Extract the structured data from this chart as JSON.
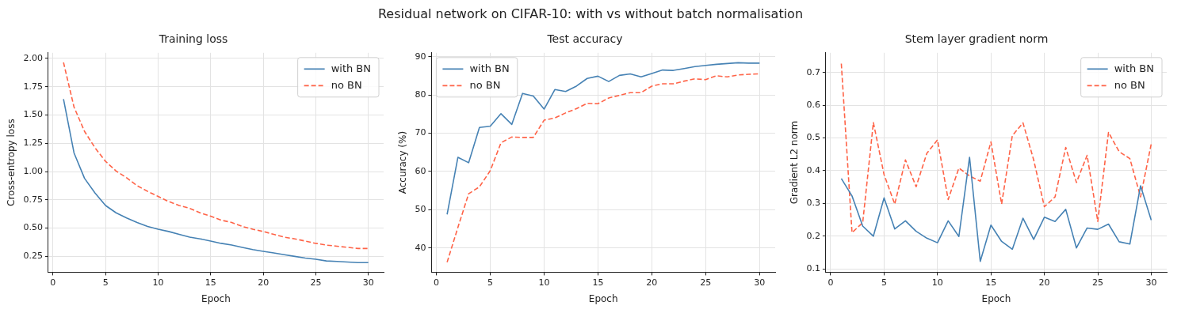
{
  "chart_data": [
    {
      "type": "line",
      "title": "Training loss",
      "xlabel": "Epoch",
      "ylabel": "Cross-entropy loss",
      "annotations": [
        "Residual network on CIFAR-10: with vs without batch normalisation"
      ],
      "x": [
        1,
        2,
        3,
        4,
        5,
        6,
        7,
        8,
        9,
        10,
        11,
        12,
        13,
        14,
        15,
        16,
        17,
        18,
        19,
        20,
        21,
        22,
        23,
        24,
        25,
        26,
        27,
        28,
        29,
        30
      ],
      "series": [
        {
          "name": "with BN",
          "color": "#4682b4",
          "line_style": "solid",
          "values": [
            1.64,
            1.165,
            0.94,
            0.81,
            0.7,
            0.635,
            0.59,
            0.55,
            0.515,
            0.49,
            0.47,
            0.445,
            0.42,
            0.405,
            0.385,
            0.365,
            0.35,
            0.33,
            0.31,
            0.295,
            0.28,
            0.265,
            0.25,
            0.235,
            0.225,
            0.21,
            0.205,
            0.2,
            0.195,
            0.195
          ]
        },
        {
          "name": "no BN",
          "color": "#ff6347",
          "line_style": "dashed",
          "values": [
            1.965,
            1.57,
            1.355,
            1.21,
            1.09,
            1.005,
            0.945,
            0.875,
            0.825,
            0.78,
            0.735,
            0.7,
            0.675,
            0.635,
            0.605,
            0.57,
            0.55,
            0.515,
            0.49,
            0.47,
            0.445,
            0.42,
            0.405,
            0.385,
            0.365,
            0.35,
            0.34,
            0.33,
            0.32,
            0.32
          ]
        }
      ],
      "xlim": [
        -0.45,
        31.45
      ],
      "xticks": [
        0,
        5,
        10,
        15,
        20,
        25,
        30
      ],
      "ylim": [
        0.11,
        2.05
      ],
      "yticks": [
        {
          "value": 0.25,
          "label": "0.25"
        },
        {
          "value": 0.5,
          "label": "0.50"
        },
        {
          "value": 0.75,
          "label": "0.75"
        },
        {
          "value": 1,
          "label": "1.00"
        },
        {
          "value": 1.25,
          "label": "1.25"
        },
        {
          "value": 1.5,
          "label": "1.50"
        },
        {
          "value": 1.75,
          "label": "1.75"
        },
        {
          "value": 2,
          "label": "2.00"
        }
      ],
      "grid": true,
      "legend": "top right",
      "marker": "none"
    },
    {
      "type": "line",
      "title": "Test accuracy",
      "xlabel": "Epoch",
      "ylabel": "Accuracy (%)",
      "x": [
        1,
        2,
        3,
        4,
        5,
        6,
        7,
        8,
        9,
        10,
        11,
        12,
        13,
        14,
        15,
        16,
        17,
        18,
        19,
        20,
        21,
        22,
        23,
        24,
        25,
        26,
        27,
        28,
        29,
        30
      ],
      "series": [
        {
          "name": "with BN",
          "color": "#4682b4",
          "line_style": "solid",
          "values": [
            48.8,
            63.7,
            62.3,
            71.5,
            71.8,
            75.1,
            72.3,
            80.4,
            79.7,
            76.3,
            81.4,
            80.9,
            82.3,
            84.3,
            84.9,
            83.5,
            85.1,
            85.5,
            84.7,
            85.6,
            86.5,
            86.4,
            86.9,
            87.4,
            87.7,
            88.0,
            88.2,
            88.4,
            88.3,
            88.3
          ]
        },
        {
          "name": "no BN",
          "color": "#ff6347",
          "line_style": "dashed",
          "values": [
            36.3,
            45.4,
            54.2,
            56.0,
            60.2,
            67.5,
            69.0,
            68.9,
            68.9,
            73.4,
            74.0,
            75.3,
            76.4,
            77.8,
            77.7,
            79.2,
            79.9,
            80.6,
            80.6,
            82.3,
            82.9,
            82.9,
            83.6,
            84.2,
            84.0,
            85.0,
            84.7,
            85.2,
            85.4,
            85.5
          ]
        }
      ],
      "xlim": [
        -0.45,
        31.45
      ],
      "xticks": [
        0,
        5,
        10,
        15,
        20,
        25,
        30
      ],
      "ylim": [
        33.7,
        91.0
      ],
      "yticks": [
        40,
        50,
        60,
        70,
        80,
        90
      ],
      "grid": true,
      "legend": "top left",
      "marker": "none"
    },
    {
      "type": "line",
      "title": "Stem layer gradient norm",
      "xlabel": "Epoch",
      "ylabel": "Gradient L2 norm",
      "x": [
        1,
        2,
        3,
        4,
        5,
        6,
        7,
        8,
        9,
        10,
        11,
        12,
        13,
        14,
        15,
        16,
        17,
        18,
        19,
        20,
        21,
        22,
        23,
        24,
        25,
        26,
        27,
        28,
        29,
        30
      ],
      "series": [
        {
          "name": "with BN",
          "color": "#4682b4",
          "line_style": "solid",
          "values": [
            0.376,
            0.323,
            0.231,
            0.2,
            0.317,
            0.222,
            0.247,
            0.215,
            0.194,
            0.18,
            0.247,
            0.199,
            0.441,
            0.123,
            0.234,
            0.184,
            0.16,
            0.255,
            0.19,
            0.258,
            0.245,
            0.282,
            0.164,
            0.225,
            0.221,
            0.237,
            0.183,
            0.176,
            0.354,
            0.249
          ]
        },
        {
          "name": "no BN",
          "color": "#ff6347",
          "line_style": "dashed",
          "values": [
            0.727,
            0.211,
            0.241,
            0.547,
            0.388,
            0.298,
            0.433,
            0.351,
            0.453,
            0.494,
            0.312,
            0.408,
            0.384,
            0.368,
            0.488,
            0.298,
            0.507,
            0.546,
            0.433,
            0.29,
            0.32,
            0.471,
            0.364,
            0.447,
            0.245,
            0.517,
            0.458,
            0.437,
            0.32,
            0.482
          ]
        }
      ],
      "xlim": [
        -0.45,
        31.45
      ],
      "xticks": [
        0,
        5,
        10,
        15,
        20,
        25,
        30
      ],
      "ylim": [
        0.09,
        0.76
      ],
      "yticks": [
        0.1,
        0.2,
        0.3,
        0.4,
        0.5,
        0.6,
        0.7
      ],
      "grid": true,
      "legend": "top right",
      "marker": "none"
    }
  ]
}
